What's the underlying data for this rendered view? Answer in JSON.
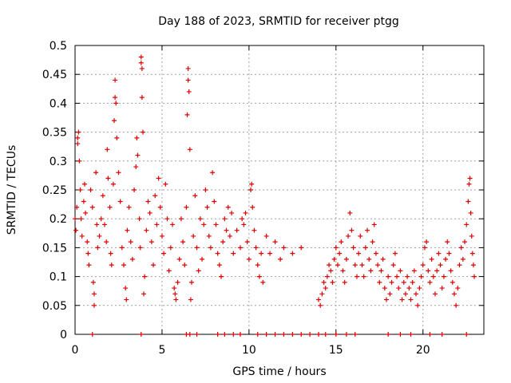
{
  "chart_data": {
    "type": "scatter",
    "title": "Day 188 of 2023, SRMTID for receiver ptgg",
    "xlabel": "GPS time / hours",
    "ylabel": "SRMTID / TECUs",
    "xlim": [
      0,
      23.5
    ],
    "ylim": [
      0,
      0.5
    ],
    "grid": true,
    "marker": "+",
    "colors": {
      "series": "#dd0000",
      "grid": "#a0a0a0",
      "axis": "#000000"
    },
    "x_ticks": [
      "0",
      "5",
      "10",
      "15",
      "20"
    ],
    "x_tick_values": [
      0,
      5,
      10,
      15,
      20
    ],
    "y_ticks": [
      "0",
      "0.05",
      "0.1",
      "0.15",
      "0.2",
      "0.25",
      "0.3",
      "0.35",
      "0.4",
      "0.45",
      "0.5"
    ],
    "y_tick_values": [
      0,
      0.05,
      0.1,
      0.15,
      0.2,
      0.25,
      0.3,
      0.35,
      0.4,
      0.45,
      0.5
    ],
    "series": [
      {
        "name": "SRMTID",
        "points": [
          [
            0.0,
            0.2
          ],
          [
            0.05,
            0.18
          ],
          [
            0.1,
            0.22
          ],
          [
            0.15,
            0.34
          ],
          [
            0.15,
            0.33
          ],
          [
            0.2,
            0.35
          ],
          [
            0.25,
            0.3
          ],
          [
            0.3,
            0.25
          ],
          [
            0.35,
            0.2
          ],
          [
            0.4,
            0.17
          ],
          [
            0.5,
            0.23
          ],
          [
            0.55,
            0.26
          ],
          [
            0.6,
            0.21
          ],
          [
            0.7,
            0.16
          ],
          [
            0.75,
            0.14
          ],
          [
            0.8,
            0.12
          ],
          [
            0.9,
            0.25
          ],
          [
            1.0,
            0.22
          ],
          [
            1.05,
            0.09
          ],
          [
            1.1,
            0.07
          ],
          [
            1.1,
            0.05
          ],
          [
            1.2,
            0.28
          ],
          [
            1.25,
            0.19
          ],
          [
            1.3,
            0.15
          ],
          [
            1.4,
            0.17
          ],
          [
            1.5,
            0.2
          ],
          [
            1.6,
            0.24
          ],
          [
            1.7,
            0.19
          ],
          [
            1.8,
            0.16
          ],
          [
            1.85,
            0.32
          ],
          [
            1.9,
            0.27
          ],
          [
            2.0,
            0.22
          ],
          [
            2.05,
            0.14
          ],
          [
            2.1,
            0.12
          ],
          [
            2.2,
            0.26
          ],
          [
            2.25,
            0.37
          ],
          [
            2.3,
            0.41
          ],
          [
            2.3,
            0.44
          ],
          [
            2.35,
            0.4
          ],
          [
            2.4,
            0.34
          ],
          [
            2.5,
            0.28
          ],
          [
            2.6,
            0.23
          ],
          [
            2.7,
            0.15
          ],
          [
            2.8,
            0.12
          ],
          [
            2.9,
            0.08
          ],
          [
            2.95,
            0.06
          ],
          [
            3.0,
            0.18
          ],
          [
            3.1,
            0.22
          ],
          [
            3.2,
            0.16
          ],
          [
            3.3,
            0.13
          ],
          [
            3.4,
            0.25
          ],
          [
            3.5,
            0.29
          ],
          [
            3.55,
            0.34
          ],
          [
            3.6,
            0.31
          ],
          [
            3.7,
            0.2
          ],
          [
            3.75,
            0.15
          ],
          [
            3.8,
            0.47
          ],
          [
            3.8,
            0.48
          ],
          [
            3.85,
            0.46
          ],
          [
            3.85,
            0.41
          ],
          [
            3.9,
            0.35
          ],
          [
            3.95,
            0.07
          ],
          [
            4.0,
            0.1
          ],
          [
            4.1,
            0.18
          ],
          [
            4.2,
            0.23
          ],
          [
            4.3,
            0.21
          ],
          [
            4.4,
            0.16
          ],
          [
            4.5,
            0.12
          ],
          [
            4.6,
            0.24
          ],
          [
            4.7,
            0.19
          ],
          [
            4.8,
            0.27
          ],
          [
            4.9,
            0.22
          ],
          [
            5.0,
            0.17
          ],
          [
            5.1,
            0.14
          ],
          [
            5.2,
            0.26
          ],
          [
            5.3,
            0.2
          ],
          [
            5.4,
            0.11
          ],
          [
            5.5,
            0.15
          ],
          [
            5.6,
            0.19
          ],
          [
            5.7,
            0.08
          ],
          [
            5.75,
            0.07
          ],
          [
            5.8,
            0.06
          ],
          [
            5.9,
            0.09
          ],
          [
            6.0,
            0.13
          ],
          [
            6.1,
            0.2
          ],
          [
            6.2,
            0.16
          ],
          [
            6.3,
            0.12
          ],
          [
            6.4,
            0.22
          ],
          [
            6.45,
            0.38
          ],
          [
            6.5,
            0.44
          ],
          [
            6.5,
            0.46
          ],
          [
            6.55,
            0.42
          ],
          [
            6.6,
            0.32
          ],
          [
            6.65,
            0.06
          ],
          [
            6.7,
            0.09
          ],
          [
            6.8,
            0.17
          ],
          [
            6.9,
            0.24
          ],
          [
            7.0,
            0.15
          ],
          [
            7.1,
            0.11
          ],
          [
            7.2,
            0.2
          ],
          [
            7.3,
            0.13
          ],
          [
            7.4,
            0.19
          ],
          [
            7.5,
            0.25
          ],
          [
            7.6,
            0.22
          ],
          [
            7.7,
            0.17
          ],
          [
            7.8,
            0.15
          ],
          [
            7.9,
            0.28
          ],
          [
            8.0,
            0.23
          ],
          [
            8.1,
            0.19
          ],
          [
            8.2,
            0.14
          ],
          [
            8.3,
            0.12
          ],
          [
            8.4,
            0.1
          ],
          [
            8.5,
            0.16
          ],
          [
            8.6,
            0.2
          ],
          [
            8.7,
            0.18
          ],
          [
            8.8,
            0.22
          ],
          [
            8.9,
            0.17
          ],
          [
            9.0,
            0.21
          ],
          [
            9.1,
            0.14
          ],
          [
            9.3,
            0.18
          ],
          [
            9.5,
            0.15
          ],
          [
            9.6,
            0.2
          ],
          [
            9.7,
            0.19
          ],
          [
            9.8,
            0.21
          ],
          [
            9.9,
            0.16
          ],
          [
            10.0,
            0.13
          ],
          [
            10.1,
            0.25
          ],
          [
            10.15,
            0.26
          ],
          [
            10.2,
            0.22
          ],
          [
            10.3,
            0.18
          ],
          [
            10.4,
            0.15
          ],
          [
            10.5,
            0.12
          ],
          [
            10.6,
            0.1
          ],
          [
            10.7,
            0.14
          ],
          [
            10.8,
            0.09
          ],
          [
            11.0,
            0.17
          ],
          [
            11.2,
            0.14
          ],
          [
            11.5,
            0.16
          ],
          [
            11.8,
            0.13
          ],
          [
            12.0,
            0.15
          ],
          [
            12.5,
            0.14
          ],
          [
            13.0,
            0.15
          ],
          [
            14.0,
            0.06
          ],
          [
            14.1,
            0.05
          ],
          [
            14.2,
            0.07
          ],
          [
            14.3,
            0.09
          ],
          [
            14.4,
            0.08
          ],
          [
            14.5,
            0.1
          ],
          [
            14.6,
            0.12
          ],
          [
            14.7,
            0.11
          ],
          [
            14.8,
            0.09
          ],
          [
            14.9,
            0.13
          ],
          [
            15.0,
            0.15
          ],
          [
            15.1,
            0.12
          ],
          [
            15.2,
            0.14
          ],
          [
            15.3,
            0.16
          ],
          [
            15.4,
            0.11
          ],
          [
            15.5,
            0.09
          ],
          [
            15.6,
            0.13
          ],
          [
            15.7,
            0.17
          ],
          [
            15.8,
            0.21
          ],
          [
            15.9,
            0.18
          ],
          [
            16.0,
            0.15
          ],
          [
            16.1,
            0.12
          ],
          [
            16.2,
            0.1
          ],
          [
            16.3,
            0.14
          ],
          [
            16.4,
            0.17
          ],
          [
            16.5,
            0.12
          ],
          [
            16.6,
            0.1
          ],
          [
            16.7,
            0.15
          ],
          [
            16.8,
            0.18
          ],
          [
            16.9,
            0.13
          ],
          [
            17.0,
            0.11
          ],
          [
            17.1,
            0.16
          ],
          [
            17.2,
            0.19
          ],
          [
            17.3,
            0.14
          ],
          [
            17.4,
            0.12
          ],
          [
            17.5,
            0.09
          ],
          [
            17.6,
            0.11
          ],
          [
            17.7,
            0.13
          ],
          [
            17.8,
            0.08
          ],
          [
            17.9,
            0.06
          ],
          [
            18.0,
            0.1
          ],
          [
            18.1,
            0.07
          ],
          [
            18.2,
            0.09
          ],
          [
            18.3,
            0.12
          ],
          [
            18.4,
            0.14
          ],
          [
            18.5,
            0.1
          ],
          [
            18.6,
            0.08
          ],
          [
            18.7,
            0.11
          ],
          [
            18.8,
            0.06
          ],
          [
            18.9,
            0.09
          ],
          [
            19.0,
            0.07
          ],
          [
            19.1,
            0.1
          ],
          [
            19.2,
            0.08
          ],
          [
            19.3,
            0.06
          ],
          [
            19.4,
            0.09
          ],
          [
            19.5,
            0.11
          ],
          [
            19.6,
            0.07
          ],
          [
            19.7,
            0.05
          ],
          [
            19.8,
            0.08
          ],
          [
            19.9,
            0.1
          ],
          [
            20.0,
            0.12
          ],
          [
            20.1,
            0.15
          ],
          [
            20.2,
            0.16
          ],
          [
            20.3,
            0.11
          ],
          [
            20.4,
            0.09
          ],
          [
            20.5,
            0.13
          ],
          [
            20.6,
            0.1
          ],
          [
            20.7,
            0.07
          ],
          [
            20.8,
            0.11
          ],
          [
            20.9,
            0.14
          ],
          [
            21.0,
            0.12
          ],
          [
            21.1,
            0.08
          ],
          [
            21.2,
            0.1
          ],
          [
            21.3,
            0.13
          ],
          [
            21.4,
            0.16
          ],
          [
            21.5,
            0.14
          ],
          [
            21.6,
            0.11
          ],
          [
            21.7,
            0.09
          ],
          [
            21.8,
            0.07
          ],
          [
            21.9,
            0.05
          ],
          [
            22.0,
            0.08
          ],
          [
            22.1,
            0.12
          ],
          [
            22.2,
            0.15
          ],
          [
            22.3,
            0.13
          ],
          [
            22.4,
            0.16
          ],
          [
            22.5,
            0.19
          ],
          [
            22.6,
            0.23
          ],
          [
            22.65,
            0.26
          ],
          [
            22.7,
            0.27
          ],
          [
            22.75,
            0.21
          ],
          [
            22.8,
            0.17
          ],
          [
            22.85,
            0.14
          ],
          [
            22.9,
            0.12
          ],
          [
            22.95,
            0.1
          ],
          [
            1.0,
            0.0
          ],
          [
            3.8,
            0.0
          ],
          [
            6.4,
            0.0
          ],
          [
            6.6,
            0.0
          ],
          [
            7.0,
            0.0
          ],
          [
            8.2,
            0.0
          ],
          [
            8.6,
            0.0
          ],
          [
            9.1,
            0.0
          ],
          [
            9.5,
            0.0
          ],
          [
            10.5,
            0.0
          ],
          [
            11.0,
            0.0
          ],
          [
            11.5,
            0.0
          ],
          [
            12.0,
            0.0
          ],
          [
            12.5,
            0.0
          ],
          [
            13.0,
            0.0
          ],
          [
            13.5,
            0.0
          ],
          [
            14.0,
            0.0
          ],
          [
            14.4,
            0.0
          ],
          [
            15.0,
            0.0
          ],
          [
            15.6,
            0.0
          ],
          [
            16.1,
            0.0
          ],
          [
            18.0,
            0.0
          ],
          [
            18.7,
            0.0
          ],
          [
            19.3,
            0.0
          ],
          [
            20.4,
            0.0
          ],
          [
            21.1,
            0.0
          ],
          [
            22.5,
            0.0
          ]
        ]
      }
    ]
  }
}
